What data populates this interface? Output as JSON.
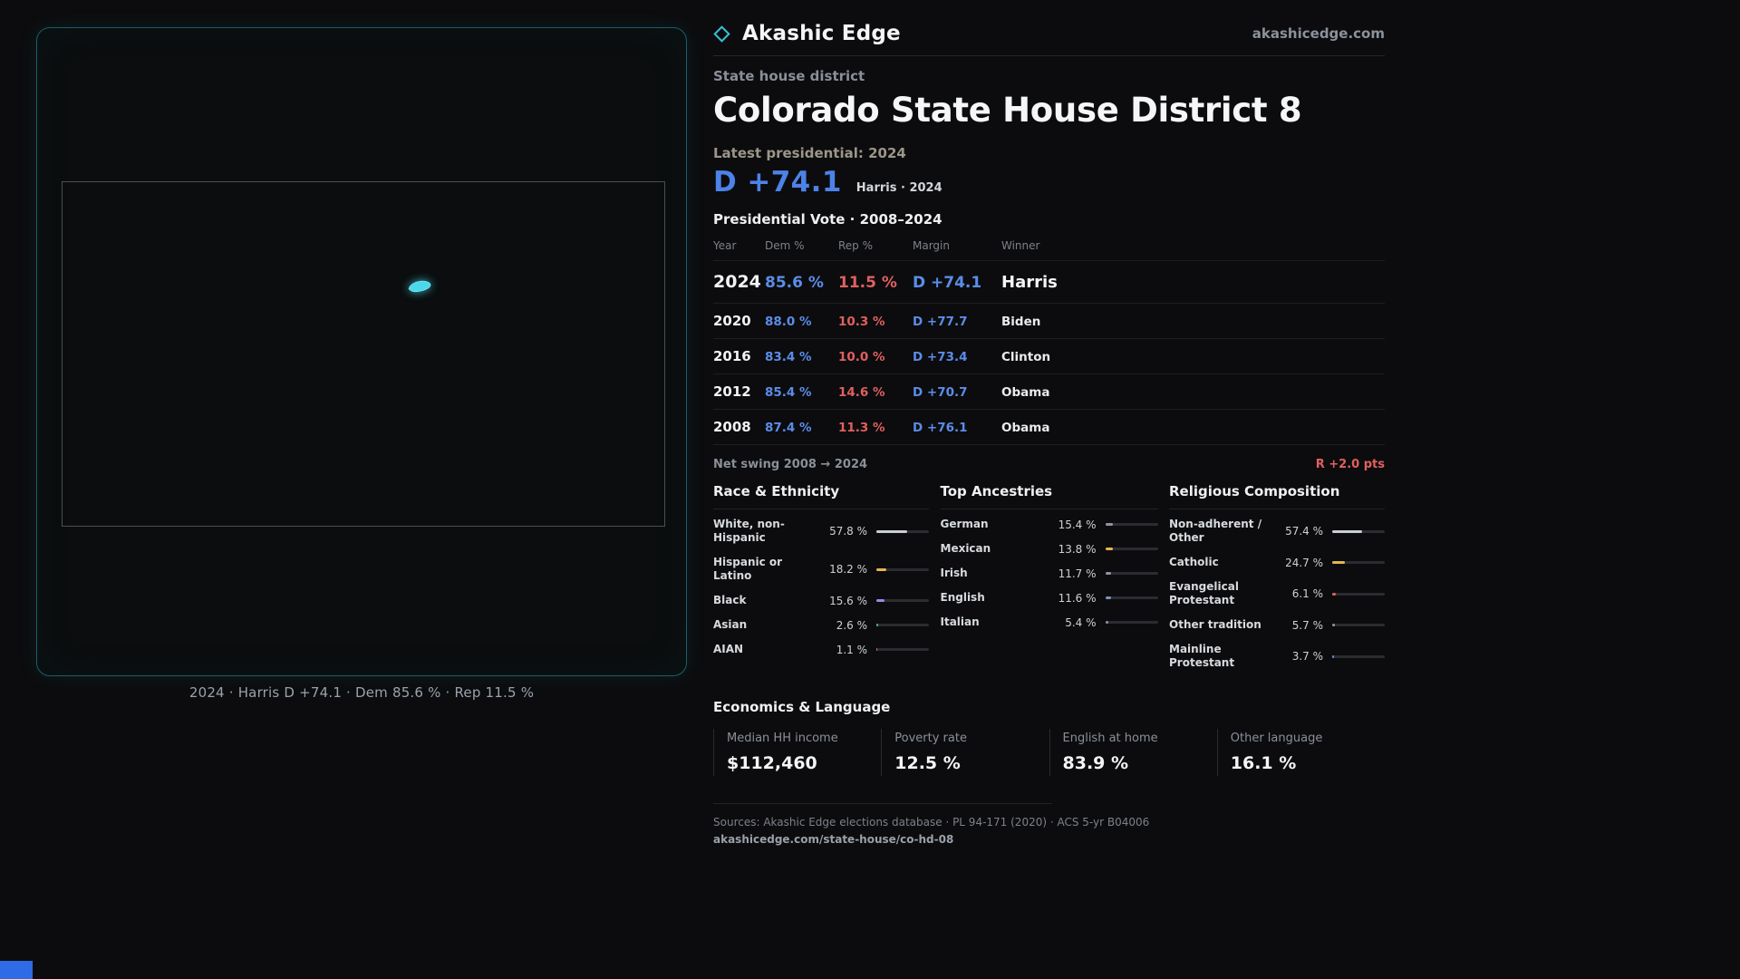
{
  "brand": {
    "name": "Akashic Edge",
    "domain": "akashicedge.com"
  },
  "map": {
    "caption": "2024 · Harris D +74.1 · Dem 85.6 % · Rep 11.5 %"
  },
  "header": {
    "kicker": "State house district",
    "title": "Colorado State House District 8",
    "latest_label": "Latest presidential: 2024",
    "margin_value": "D +74.1",
    "margin_caption": "Harris · 2024"
  },
  "vote_table": {
    "title": "Presidential Vote · 2008–2024",
    "columns": [
      "Year",
      "Dem %",
      "Rep %",
      "Margin",
      "Winner"
    ],
    "rows": [
      {
        "cls": "hero",
        "year": "2024",
        "dem": "85.6 %",
        "rep": "11.5 %",
        "margin": "D +74.1",
        "winner": "Harris"
      },
      {
        "cls": "normal",
        "year": "2020",
        "dem": "88.0 %",
        "rep": "10.3 %",
        "margin": "D +77.7",
        "winner": "Biden"
      },
      {
        "cls": "normal",
        "year": "2016",
        "dem": "83.4 %",
        "rep": "10.0 %",
        "margin": "D +73.4",
        "winner": "Clinton"
      },
      {
        "cls": "normal",
        "year": "2012",
        "dem": "85.4 %",
        "rep": "14.6 %",
        "margin": "D +70.7",
        "winner": "Obama"
      },
      {
        "cls": "normal",
        "year": "2008",
        "dem": "87.4 %",
        "rep": "11.3 %",
        "margin": "D +76.1",
        "winner": "Obama"
      }
    ]
  },
  "swing": {
    "label": "Net swing 2008 → 2024",
    "value": "R +2.0 pts"
  },
  "demographics": {
    "race": {
      "title": "Race & Ethnicity",
      "items": [
        {
          "label": "White, non-Hispanic",
          "value": "57.8 %",
          "pct": 57.8,
          "color": "#c9ced4"
        },
        {
          "label": "Hispanic or Latino",
          "value": "18.2 %",
          "pct": 18.2,
          "color": "#e3b64e"
        },
        {
          "label": "Black",
          "value": "15.6 %",
          "pct": 15.6,
          "color": "#9f84ea"
        },
        {
          "label": "Asian",
          "value": "2.6 %",
          "pct": 2.6,
          "color": "#43bf83"
        },
        {
          "label": "AIAN",
          "value": "1.1 %",
          "pct": 1.1,
          "color": "#d96a4b"
        }
      ]
    },
    "ancestries": {
      "title": "Top Ancestries",
      "items": [
        {
          "label": "German",
          "value": "15.4 %",
          "pct": 15.4,
          "color": "#8e959e"
        },
        {
          "label": "Mexican",
          "value": "13.8 %",
          "pct": 13.8,
          "color": "#e3b64e"
        },
        {
          "label": "Irish",
          "value": "11.7 %",
          "pct": 11.7,
          "color": "#8e959e"
        },
        {
          "label": "English",
          "value": "11.6 %",
          "pct": 11.6,
          "color": "#7d93b8"
        },
        {
          "label": "Italian",
          "value": "5.4 %",
          "pct": 5.4,
          "color": "#8e959e"
        }
      ]
    },
    "religion": {
      "title": "Religious Composition",
      "items": [
        {
          "label": "Non-adherent / Other",
          "value": "57.4 %",
          "pct": 57.4,
          "color": "#c9ced4"
        },
        {
          "label": "Catholic",
          "value": "24.7 %",
          "pct": 24.7,
          "color": "#e3b64e"
        },
        {
          "label": "Evangelical Protestant",
          "value": "6.1 %",
          "pct": 6.1,
          "color": "#e0605f"
        },
        {
          "label": "Other tradition",
          "value": "5.7 %",
          "pct": 5.7,
          "color": "#8e959e"
        },
        {
          "label": "Mainline Protestant",
          "value": "3.7 %",
          "pct": 3.7,
          "color": "#5b8de8"
        }
      ]
    }
  },
  "economics": {
    "title": "Economics & Language",
    "stats": [
      {
        "label": "Median HH income",
        "value": "$112,460"
      },
      {
        "label": "Poverty rate",
        "value": "12.5 %"
      },
      {
        "label": "English at home",
        "value": "83.9 %"
      },
      {
        "label": "Other language",
        "value": "16.1 %"
      }
    ]
  },
  "footer": {
    "sources": "Sources: Akashic Edge elections database · PL 94-171 (2020) · ACS 5-yr B04006",
    "permalink": "akashicedge.com/state-house/co-hd-08"
  },
  "colors": {
    "dem": "#5b8de8",
    "rep": "#e0605f",
    "district": "#4ad9ec",
    "panel_border": "#17606a"
  }
}
